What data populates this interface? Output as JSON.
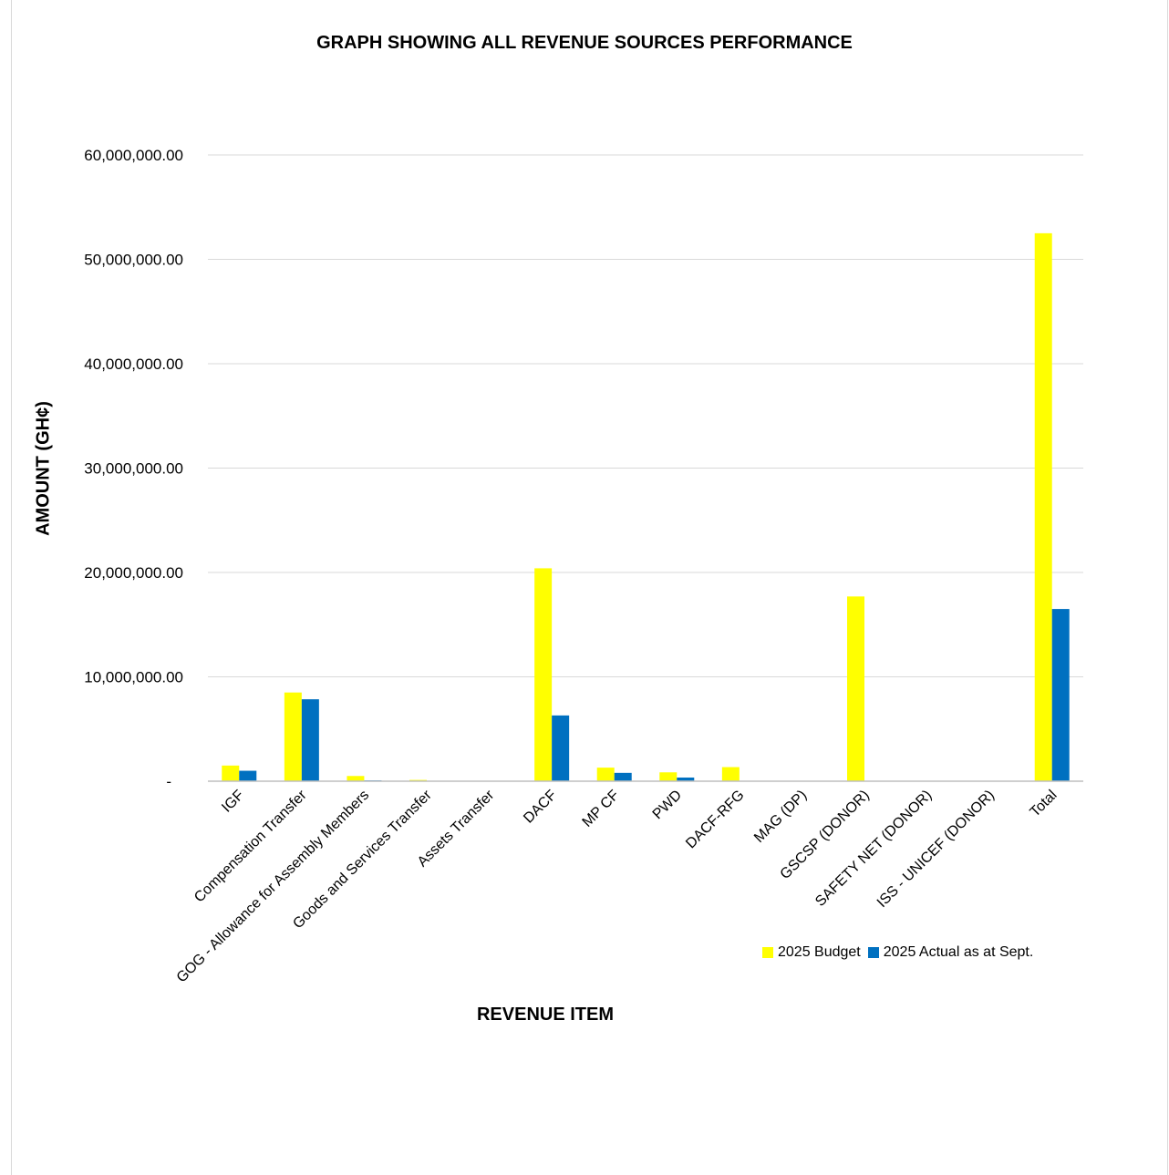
{
  "chart_data": {
    "type": "bar",
    "title": "GRAPH SHOWING ALL REVENUE SOURCES PERFORMANCE",
    "xlabel": "REVENUE ITEM",
    "ylabel": "AMOUNT (GH¢)",
    "ylim": [
      0,
      60000000
    ],
    "yticks": [
      {
        "value": 0,
        "label": "-"
      },
      {
        "value": 10000000,
        "label": "10,000,000.00"
      },
      {
        "value": 20000000,
        "label": "20,000,000.00"
      },
      {
        "value": 30000000,
        "label": "30,000,000.00"
      },
      {
        "value": 40000000,
        "label": "40,000,000.00"
      },
      {
        "value": 50000000,
        "label": "50,000,000.00"
      },
      {
        "value": 60000000,
        "label": "60,000,000.00"
      }
    ],
    "grid": true,
    "legend_position": "bottom-right",
    "categories": [
      "IGF",
      "Compensation Transfer",
      "GOG - Allowance for Assembly Members",
      "Goods and Services Transfer",
      "Assets Transfer",
      "DACF",
      "MP CF",
      "PWD",
      "DACF-RFG",
      "MAG (DP)",
      "GSCSP (DONOR)",
      "SAFETY NET (DONOR)",
      "ISS - UNICEF (DONOR)",
      "Total"
    ],
    "series": [
      {
        "name": "2025 Budget",
        "color": "#ffff00",
        "values": [
          1500000,
          8500000,
          500000,
          120000,
          0,
          20400000,
          1300000,
          850000,
          1350000,
          0,
          17700000,
          0,
          0,
          52500000
        ]
      },
      {
        "name": "2025 Actual as at Sept.",
        "color": "#0070c0",
        "values": [
          1000000,
          7850000,
          80000,
          20000,
          0,
          6300000,
          800000,
          350000,
          0,
          0,
          0,
          0,
          0,
          16500000
        ]
      }
    ]
  }
}
